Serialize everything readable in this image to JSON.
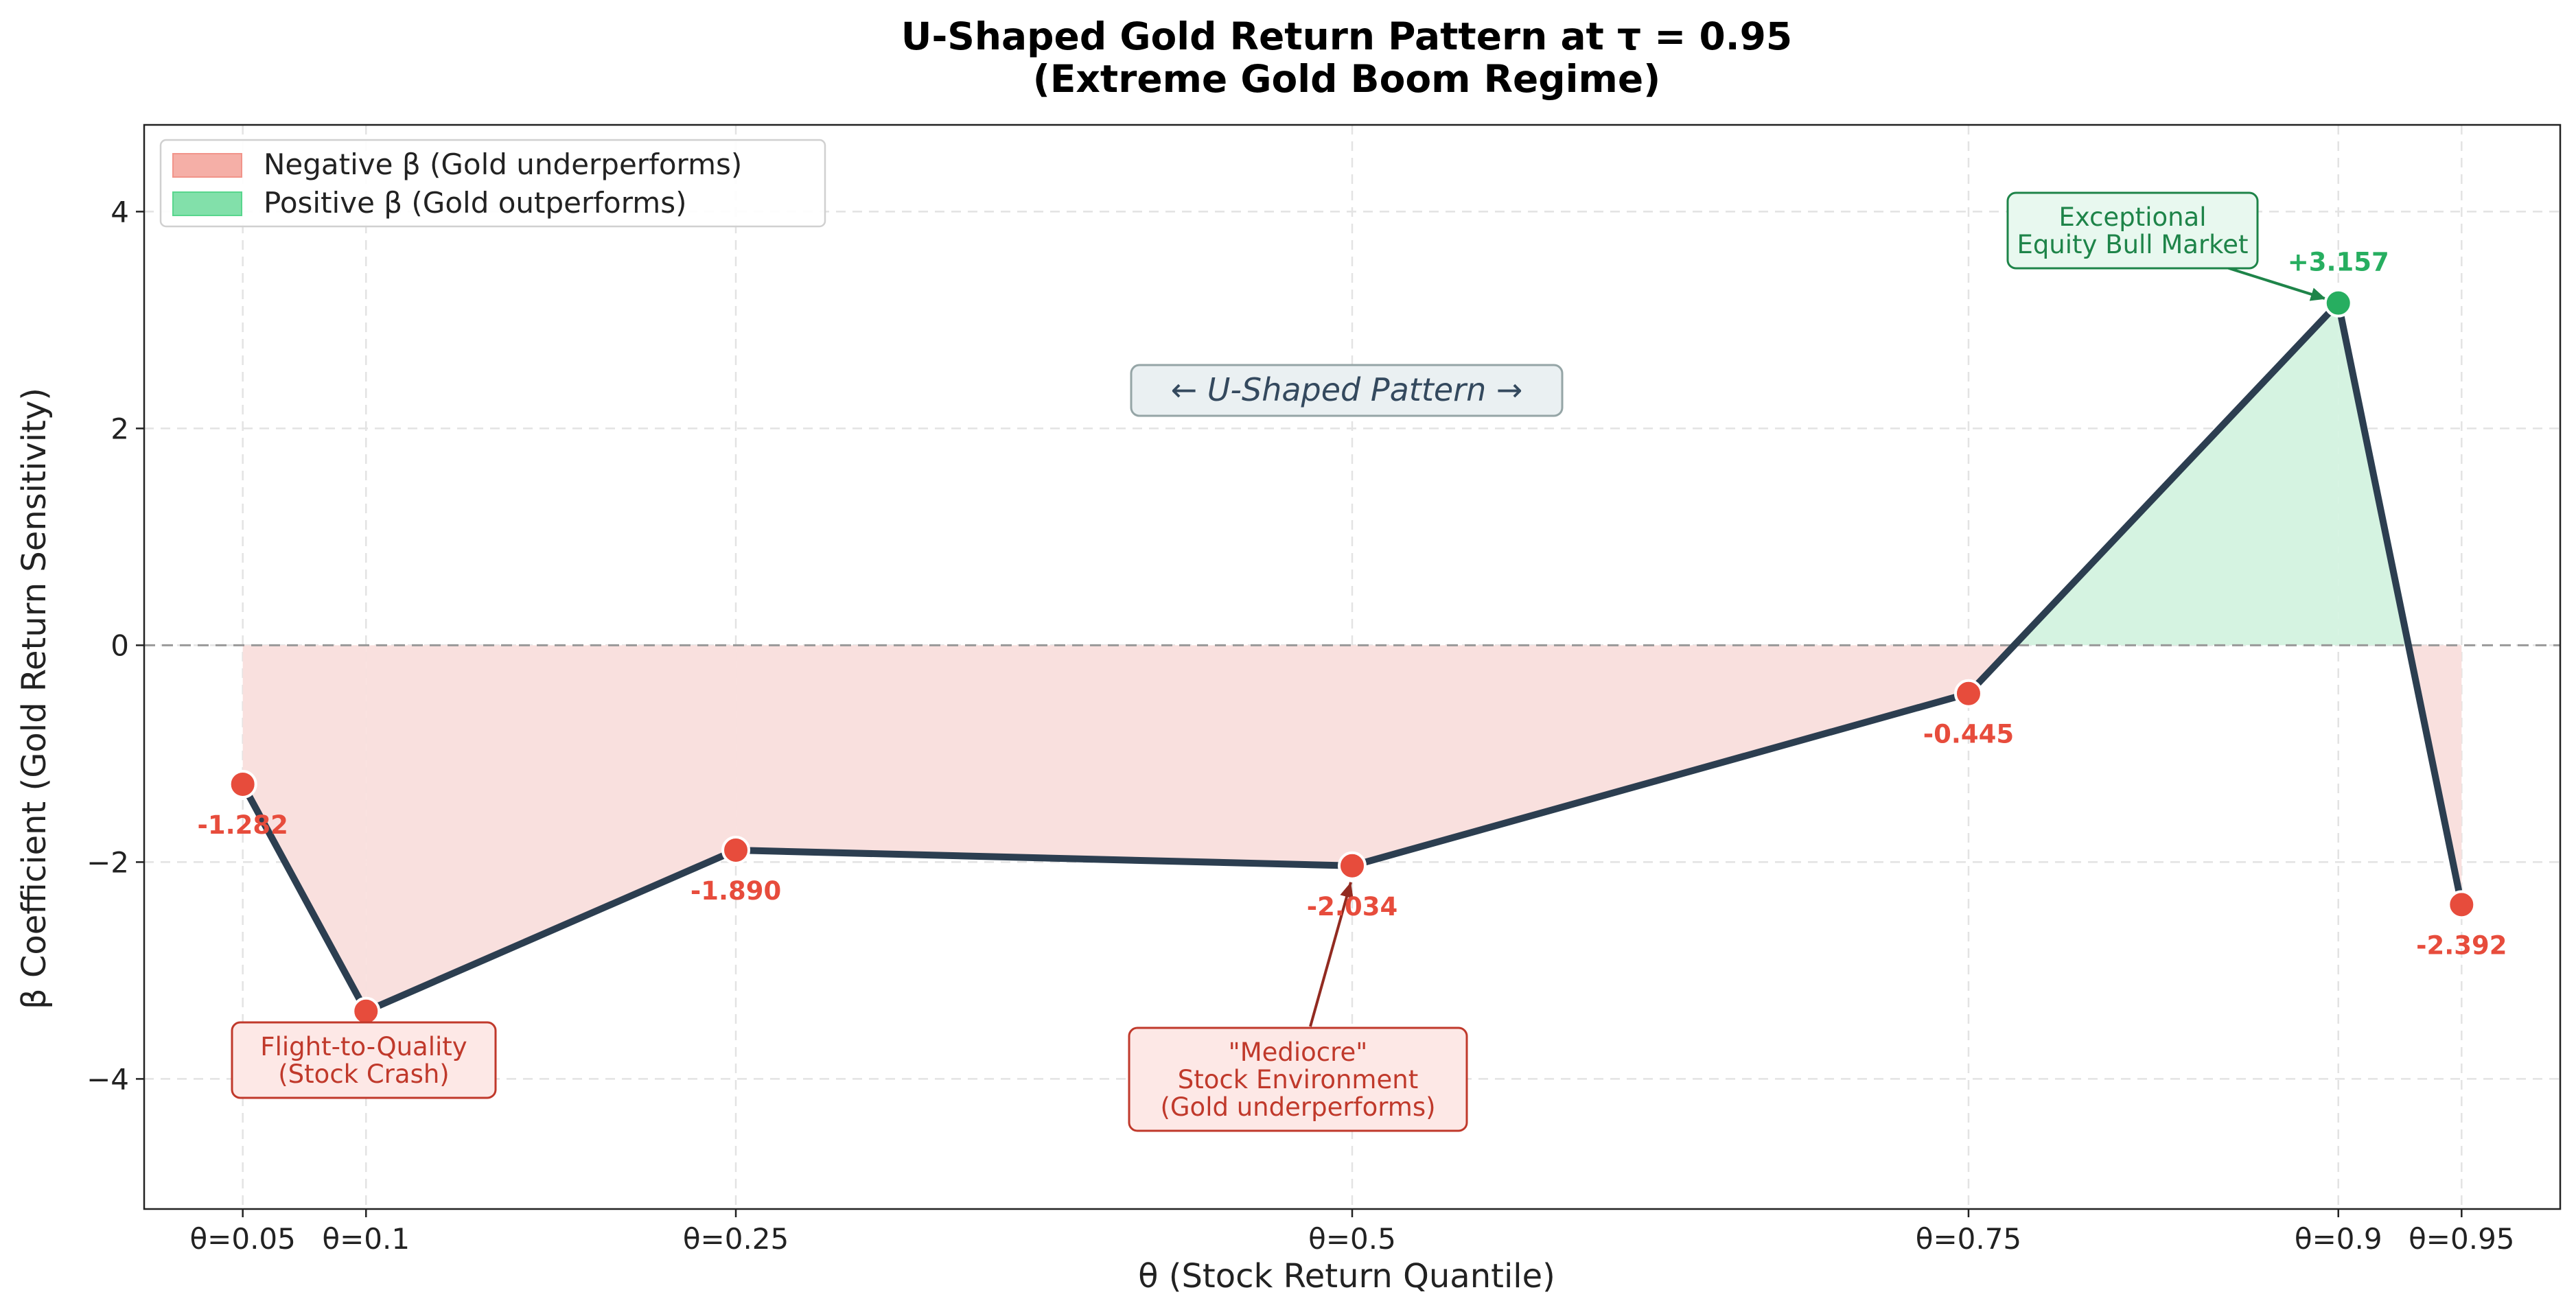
{
  "chart_data": {
    "type": "line",
    "title": [
      "U-Shaped Gold Return Pattern at τ = 0.95",
      "(Extreme Gold Boom Regime)"
    ],
    "xlabel": "θ (Stock Return Quantile)",
    "ylabel": "β Coefficient (Gold Return Sensitivity)",
    "x": [
      0.05,
      0.1,
      0.25,
      0.5,
      0.75,
      0.9,
      0.95
    ],
    "x_tick_labels": [
      "θ=0.05",
      "θ=0.1",
      "θ=0.25",
      "θ=0.5",
      "θ=0.75",
      "θ=0.9",
      "θ=0.95"
    ],
    "y": [
      -1.282,
      -3.376,
      -1.89,
      -2.034,
      -0.445,
      3.157,
      -2.392
    ],
    "data_labels": [
      "-1.282",
      "",
      "-1.890",
      "-2.034",
      "-0.445",
      "+3.157",
      "-2.392"
    ],
    "xlim": [
      0.01,
      0.99
    ],
    "ylim": [
      -5.2,
      4.8
    ],
    "y_ticks": [
      -4,
      -2,
      0,
      2,
      4
    ],
    "y_tick_labels": [
      "−4",
      "−2",
      "0",
      "2",
      "4"
    ],
    "grid": true,
    "legend_position": "top-left",
    "legend": [
      {
        "label": "Negative β (Gold underperforms)",
        "color": "#f1948a"
      },
      {
        "label": "Positive β (Gold outperforms)",
        "color": "#58d68d"
      }
    ],
    "annotations": [
      {
        "lines": [
          "Flight-to-Quality",
          "(Stock Crash)"
        ],
        "target_index": 1,
        "style": "red"
      },
      {
        "lines": [
          "\"Mediocre\"",
          "Stock Environment",
          "(Gold underperforms)"
        ],
        "target_index": 3,
        "style": "red"
      },
      {
        "lines": [
          "Exceptional",
          "Equity Bull Market"
        ],
        "target_index": 5,
        "style": "green"
      },
      {
        "lines": [
          "← U-Shaped Pattern →"
        ],
        "style": "note"
      }
    ],
    "colors": {
      "line": "#2c3e50",
      "negative_marker": "#e74c3c",
      "positive_marker": "#27ae60",
      "negative_fill": "#f9e0de",
      "positive_fill": "#d5f3e1",
      "negative_text": "#e74c3c",
      "positive_text": "#27ae60",
      "annotation_red_text": "#c0392b",
      "annotation_green_text": "#1e8449",
      "zero_line": "#999999"
    }
  }
}
